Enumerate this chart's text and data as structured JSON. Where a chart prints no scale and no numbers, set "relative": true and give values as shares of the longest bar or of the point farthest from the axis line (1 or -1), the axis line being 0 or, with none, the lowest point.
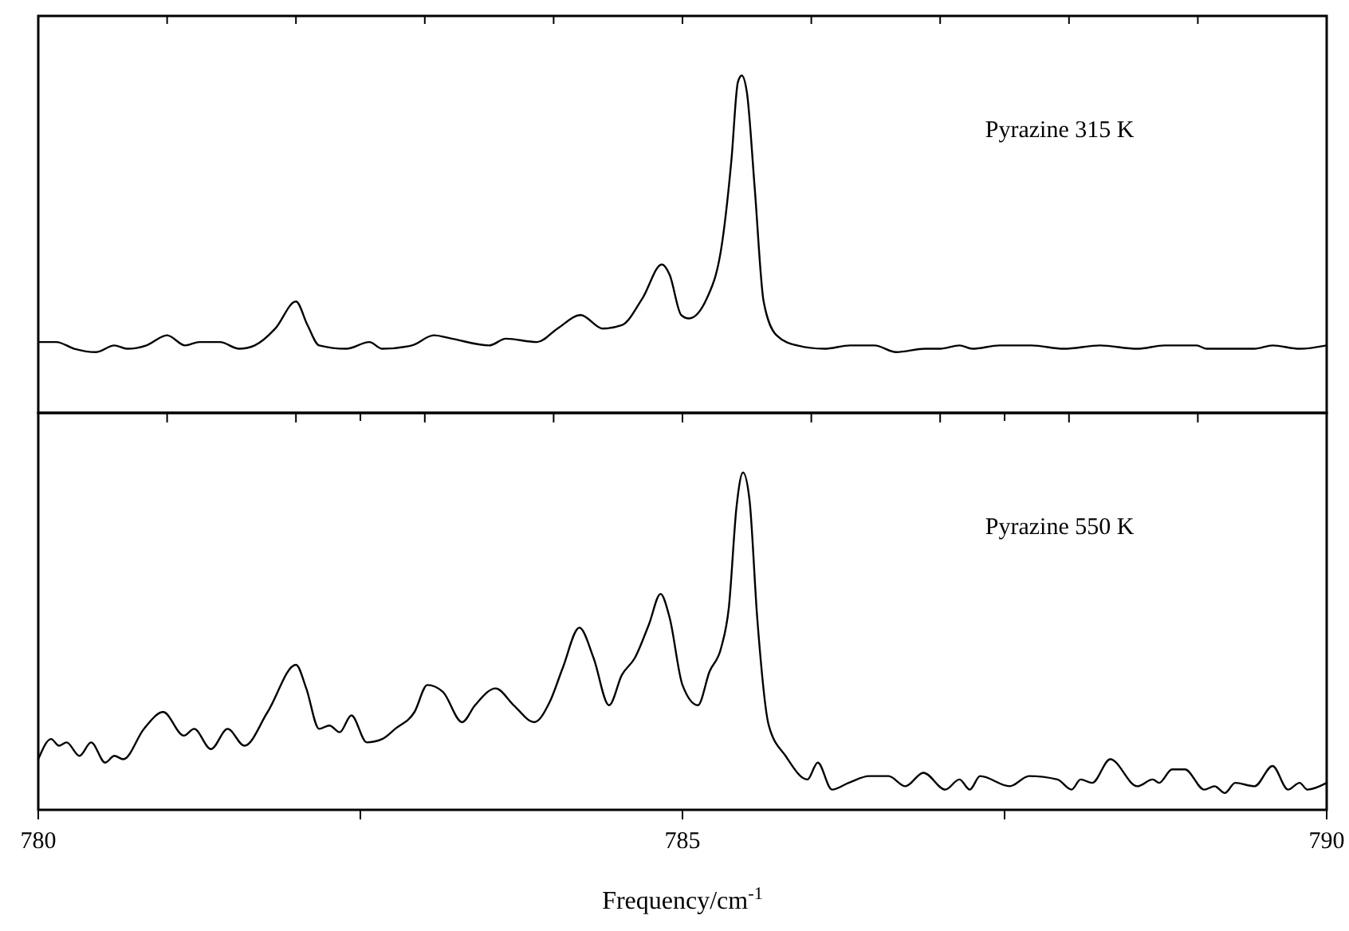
{
  "chart_data": [
    {
      "type": "line",
      "relative": true,
      "xlim": [
        780,
        790
      ],
      "xticks": [
        {
          "value": 780,
          "label": null
        },
        {
          "value": 781,
          "label": null
        },
        {
          "value": 782,
          "label": null
        },
        {
          "value": 783,
          "label": null
        },
        {
          "value": 784,
          "label": null
        },
        {
          "value": 785,
          "label": null
        },
        {
          "value": 786,
          "label": null
        },
        {
          "value": 787,
          "label": null
        },
        {
          "value": 788,
          "label": null
        },
        {
          "value": 789,
          "label": null
        },
        {
          "value": 790,
          "label": null
        }
      ],
      "tick_labels": false,
      "annotations": [
        "Pyrazine 315 K"
      ],
      "series": [
        {
          "color": "#000000",
          "x": [
            780.0,
            780.14,
            780.28,
            780.45,
            780.59,
            780.69,
            780.84,
            781.0,
            781.14,
            781.25,
            781.41,
            781.56,
            781.68,
            781.84,
            782.0,
            782.09,
            782.18,
            782.39,
            782.57,
            782.67,
            782.9,
            783.07,
            783.21,
            783.5,
            783.63,
            783.87,
            784.03,
            784.21,
            784.38,
            784.53,
            784.69,
            784.84,
            784.9,
            784.99,
            785.05,
            785.19,
            785.31,
            785.38,
            785.43,
            785.46,
            785.5,
            785.56,
            785.63,
            785.73,
            785.89,
            786.1,
            786.3,
            786.49,
            786.66,
            786.88,
            787.0,
            787.15,
            787.25,
            787.46,
            787.71,
            787.96,
            788.24,
            788.53,
            788.74,
            788.99,
            789.07,
            789.27,
            789.44,
            789.58,
            789.79,
            790.0
          ],
          "values": [
            0.21,
            0.21,
            0.19,
            0.18,
            0.2,
            0.19,
            0.2,
            0.23,
            0.2,
            0.21,
            0.21,
            0.19,
            0.2,
            0.25,
            0.33,
            0.26,
            0.2,
            0.19,
            0.21,
            0.19,
            0.2,
            0.23,
            0.22,
            0.2,
            0.22,
            0.21,
            0.25,
            0.29,
            0.25,
            0.26,
            0.34,
            0.44,
            0.41,
            0.29,
            0.28,
            0.34,
            0.51,
            0.75,
            0.98,
            1.0,
            0.95,
            0.67,
            0.33,
            0.23,
            0.2,
            0.19,
            0.2,
            0.2,
            0.18,
            0.19,
            0.19,
            0.2,
            0.19,
            0.2,
            0.2,
            0.19,
            0.2,
            0.19,
            0.2,
            0.2,
            0.19,
            0.19,
            0.19,
            0.2,
            0.19,
            0.2
          ]
        }
      ]
    },
    {
      "type": "line",
      "relative": true,
      "xlim": [
        780,
        790
      ],
      "xticks": [
        780,
        {
          "value": 782.5,
          "label": null
        },
        785,
        {
          "value": 787.5,
          "label": null
        },
        790
      ],
      "tick_labels": "x",
      "xlabel": "Frequency/cm$^{-1}$",
      "annotations": [
        "Pyrazine 550 K"
      ],
      "series": [
        {
          "color": "#000000",
          "x": [
            780.0,
            780.1,
            780.16,
            780.22,
            780.32,
            780.41,
            780.52,
            780.59,
            780.66,
            780.82,
            780.97,
            781.13,
            781.21,
            781.34,
            781.47,
            781.6,
            781.78,
            782.0,
            782.08,
            782.18,
            782.26,
            782.34,
            782.43,
            782.55,
            782.67,
            782.77,
            782.92,
            783.02,
            783.14,
            783.29,
            783.39,
            783.55,
            783.69,
            783.85,
            783.97,
            784.07,
            784.2,
            784.31,
            784.43,
            784.53,
            784.63,
            784.74,
            784.83,
            784.9,
            785.0,
            785.12,
            785.21,
            785.3,
            785.36,
            785.42,
            785.47,
            785.52,
            785.58,
            785.67,
            785.8,
            785.97,
            786.05,
            786.16,
            786.29,
            786.45,
            786.6,
            786.73,
            786.87,
            787.04,
            787.15,
            787.23,
            787.31,
            787.54,
            787.69,
            787.91,
            788.02,
            788.09,
            788.18,
            788.32,
            788.53,
            788.65,
            788.7,
            788.8,
            788.9,
            789.05,
            789.13,
            789.21,
            789.29,
            789.44,
            789.58,
            789.7,
            789.79,
            789.85,
            790.0
          ],
          "values": [
            0.15,
            0.21,
            0.19,
            0.2,
            0.16,
            0.2,
            0.14,
            0.16,
            0.15,
            0.24,
            0.29,
            0.22,
            0.24,
            0.18,
            0.24,
            0.19,
            0.29,
            0.43,
            0.36,
            0.24,
            0.25,
            0.23,
            0.28,
            0.2,
            0.21,
            0.24,
            0.29,
            0.37,
            0.35,
            0.26,
            0.31,
            0.36,
            0.31,
            0.26,
            0.32,
            0.42,
            0.54,
            0.45,
            0.31,
            0.4,
            0.45,
            0.55,
            0.64,
            0.57,
            0.37,
            0.31,
            0.41,
            0.48,
            0.6,
            0.9,
            1.0,
            0.92,
            0.57,
            0.25,
            0.16,
            0.09,
            0.14,
            0.06,
            0.08,
            0.1,
            0.1,
            0.07,
            0.11,
            0.06,
            0.09,
            0.06,
            0.1,
            0.07,
            0.1,
            0.09,
            0.06,
            0.09,
            0.08,
            0.15,
            0.07,
            0.09,
            0.08,
            0.12,
            0.12,
            0.06,
            0.07,
            0.05,
            0.08,
            0.07,
            0.13,
            0.06,
            0.08,
            0.06,
            0.08
          ]
        }
      ]
    }
  ]
}
